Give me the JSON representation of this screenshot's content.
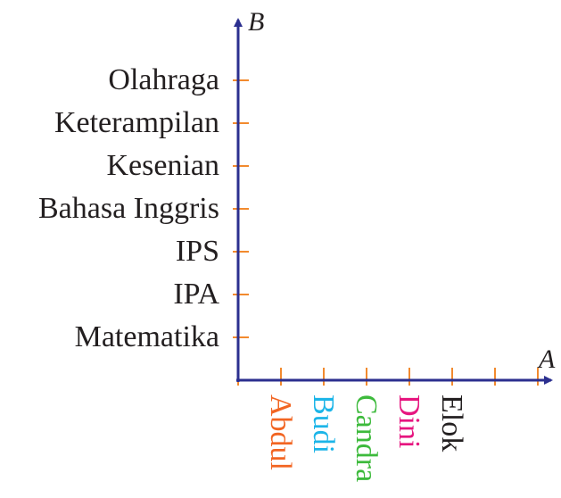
{
  "axes": {
    "x_name": "A",
    "y_name": "B",
    "axis_color": "#2b2f8f",
    "tick_color": "#f28a2e"
  },
  "y_labels": [
    "Matematika",
    "IPA",
    "IPS",
    "Bahasa Inggris",
    "Kesenian",
    "Keterampilan",
    "Olahraga"
  ],
  "x_labels": [
    {
      "text": "Abdul",
      "color": "#f26522"
    },
    {
      "text": "Budi",
      "color": "#1cb5e8"
    },
    {
      "text": "Candra",
      "color": "#3dba3c"
    },
    {
      "text": "Dini",
      "color": "#e6157f"
    },
    {
      "text": "Elok",
      "color": "#231f20"
    }
  ]
}
